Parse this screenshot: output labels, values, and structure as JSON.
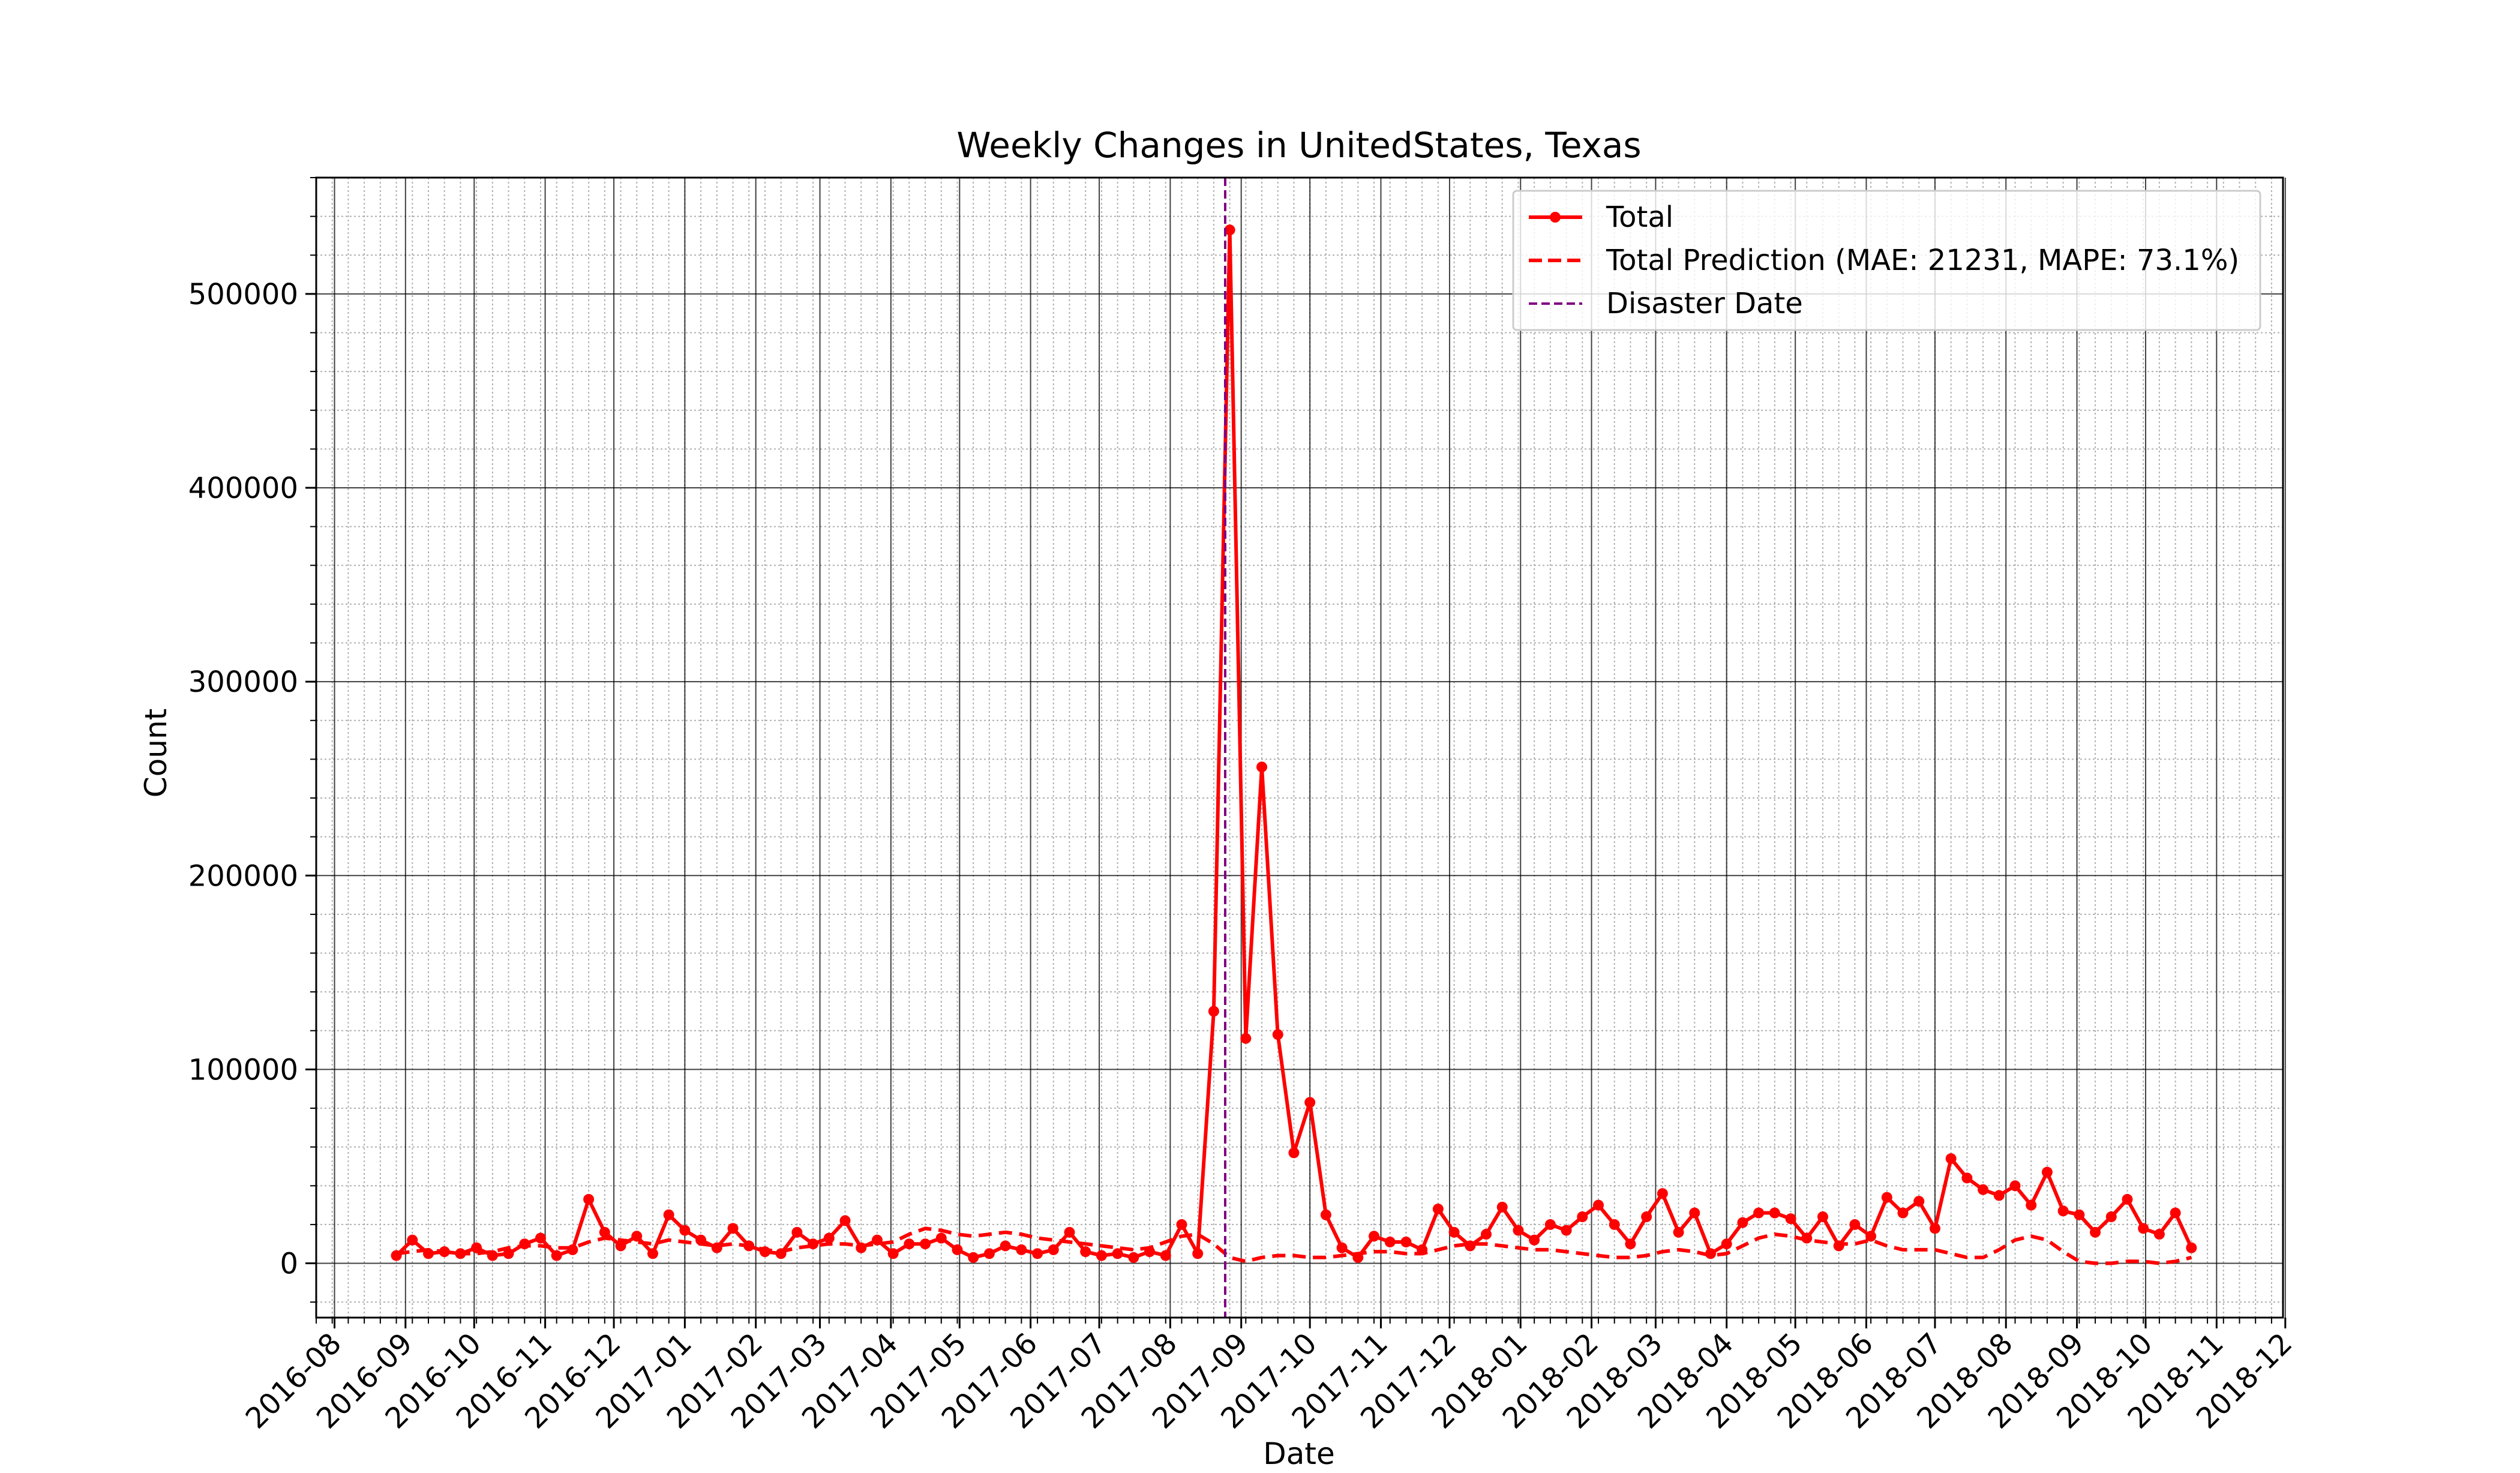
{
  "chart_data": {
    "type": "line",
    "title": "Weekly Changes in UnitedStates, Texas",
    "xlabel": "Date",
    "ylabel": "Count",
    "xlim": [
      "2016-07-24",
      "2018-11-30"
    ],
    "ylim": [
      -28000,
      560000
    ],
    "x_ticks": [
      "2016-08",
      "2016-09",
      "2016-10",
      "2016-11",
      "2016-12",
      "2017-01",
      "2017-02",
      "2017-03",
      "2017-04",
      "2017-05",
      "2017-06",
      "2017-07",
      "2017-08",
      "2017-09",
      "2017-10",
      "2017-11",
      "2017-12",
      "2018-01",
      "2018-02",
      "2018-03",
      "2018-04",
      "2018-05",
      "2018-06",
      "2018-07",
      "2018-08",
      "2018-09",
      "2018-10",
      "2018-11",
      "2018-12"
    ],
    "y_ticks": [
      0,
      100000,
      200000,
      300000,
      400000,
      500000
    ],
    "grid": "major and minor",
    "legend_position": "top-right",
    "disaster_date": "2017-08-25",
    "dates": [
      "2016-08-28",
      "2016-09-04",
      "2016-09-11",
      "2016-09-18",
      "2016-09-25",
      "2016-10-02",
      "2016-10-09",
      "2016-10-16",
      "2016-10-23",
      "2016-10-30",
      "2016-11-06",
      "2016-11-13",
      "2016-11-20",
      "2016-11-27",
      "2016-12-04",
      "2016-12-11",
      "2016-12-18",
      "2016-12-25",
      "2017-01-01",
      "2017-01-08",
      "2017-01-15",
      "2017-01-22",
      "2017-01-29",
      "2017-02-05",
      "2017-02-12",
      "2017-02-19",
      "2017-02-26",
      "2017-03-05",
      "2017-03-12",
      "2017-03-19",
      "2017-03-26",
      "2017-04-02",
      "2017-04-09",
      "2017-04-16",
      "2017-04-23",
      "2017-04-30",
      "2017-05-07",
      "2017-05-14",
      "2017-05-21",
      "2017-05-28",
      "2017-06-04",
      "2017-06-11",
      "2017-06-18",
      "2017-06-25",
      "2017-07-02",
      "2017-07-09",
      "2017-07-16",
      "2017-07-23",
      "2017-07-30",
      "2017-08-06",
      "2017-08-13",
      "2017-08-20",
      "2017-08-27",
      "2017-09-03",
      "2017-09-10",
      "2017-09-17",
      "2017-09-24",
      "2017-10-01",
      "2017-10-08",
      "2017-10-15",
      "2017-10-22",
      "2017-10-29",
      "2017-11-05",
      "2017-11-12",
      "2017-11-19",
      "2017-11-26",
      "2017-12-03",
      "2017-12-10",
      "2017-12-17",
      "2017-12-24",
      "2017-12-31",
      "2018-01-07",
      "2018-01-14",
      "2018-01-21",
      "2018-01-28",
      "2018-02-04",
      "2018-02-11",
      "2018-02-18",
      "2018-02-25",
      "2018-03-04",
      "2018-03-11",
      "2018-03-18",
      "2018-03-25",
      "2018-04-01",
      "2018-04-08",
      "2018-04-15",
      "2018-04-22",
      "2018-04-29",
      "2018-05-06",
      "2018-05-13",
      "2018-05-20",
      "2018-05-27",
      "2018-06-03",
      "2018-06-10",
      "2018-06-17",
      "2018-06-24",
      "2018-07-01",
      "2018-07-08",
      "2018-07-15",
      "2018-07-22",
      "2018-07-29",
      "2018-08-05",
      "2018-08-12",
      "2018-08-19",
      "2018-08-26",
      "2018-09-02",
      "2018-09-09",
      "2018-09-16",
      "2018-09-23",
      "2018-09-30",
      "2018-10-07",
      "2018-10-14",
      "2018-10-21"
    ],
    "series": [
      {
        "name": "Total",
        "color": "#ff0000",
        "style": "solid-with-markers",
        "values": [
          4000,
          12000,
          5000,
          6000,
          5000,
          8000,
          4000,
          5000,
          10000,
          13000,
          4000,
          7000,
          33000,
          16000,
          9000,
          14000,
          5000,
          25000,
          17000,
          12000,
          8000,
          18000,
          9000,
          6000,
          5000,
          16000,
          10000,
          13000,
          22000,
          8000,
          12000,
          5000,
          10000,
          10000,
          13000,
          7000,
          3000,
          5000,
          9000,
          7000,
          5000,
          7000,
          16000,
          6000,
          4000,
          5000,
          3000,
          6000,
          4000,
          20000,
          5000,
          130000,
          533000,
          116000,
          256000,
          118000,
          57000,
          83000,
          25000,
          8000,
          3000,
          14000,
          11000,
          11000,
          7000,
          28000,
          16000,
          9000,
          15000,
          29000,
          17000,
          12000,
          20000,
          17000,
          24000,
          30000,
          20000,
          10000,
          24000,
          36000,
          16000,
          26000,
          5000,
          10000,
          21000,
          26000,
          26000,
          23000,
          13000,
          24000,
          9000,
          20000,
          14000,
          34000,
          26000,
          32000,
          18000,
          54000,
          44000,
          38000,
          35000,
          40000,
          30000,
          47000,
          27000,
          25000,
          16000,
          24000,
          33000,
          18000,
          15000,
          26000,
          8000
        ]
      },
      {
        "name": "Total Prediction (MAE: 21231, MAPE: 73.1%)",
        "color": "#ff0000",
        "style": "dashed",
        "values": [
          5000,
          6000,
          7000,
          6000,
          5000,
          5000,
          6000,
          8000,
          9000,
          9000,
          8000,
          8000,
          11000,
          13000,
          12000,
          11000,
          10000,
          12000,
          11000,
          10000,
          9000,
          10000,
          9000,
          7000,
          6000,
          8000,
          9000,
          10000,
          10000,
          9000,
          10000,
          11000,
          15000,
          18000,
          17000,
          15000,
          14000,
          15000,
          16000,
          15000,
          13000,
          12000,
          11000,
          10000,
          9000,
          8000,
          7000,
          8000,
          11000,
          14000,
          15000,
          10000,
          3000,
          1000,
          3000,
          4000,
          4000,
          3000,
          3000,
          4000,
          5000,
          6000,
          6000,
          5000,
          5000,
          7000,
          9000,
          10000,
          10000,
          9000,
          8000,
          7000,
          7000,
          6000,
          5000,
          4000,
          3000,
          3000,
          4000,
          6000,
          7000,
          6000,
          4000,
          5000,
          9000,
          13000,
          15000,
          14000,
          12000,
          11000,
          10000,
          10000,
          12000,
          9000,
          7000,
          7000,
          7000,
          5000,
          3000,
          3000,
          7000,
          12000,
          14000,
          12000,
          6000,
          1000,
          0,
          0,
          1000,
          1000,
          0,
          1000,
          3000
        ]
      },
      {
        "name": "Disaster Date",
        "color": "#800080",
        "style": "dashed-vertical"
      }
    ]
  }
}
